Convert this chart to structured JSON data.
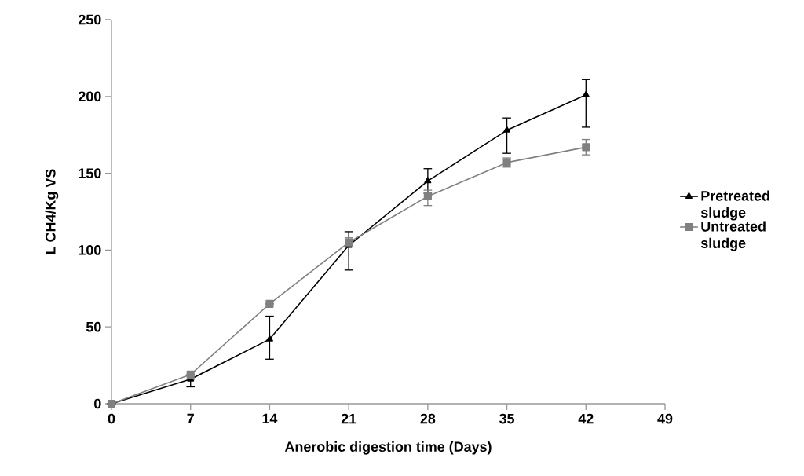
{
  "chart_data": {
    "type": "line",
    "xlabel": "Anerobic digestion time (Days)",
    "ylabel": "L CH4/Kg VS",
    "x": [
      0,
      7,
      14,
      21,
      28,
      35,
      42
    ],
    "series": [
      {
        "name": "Pretreated sludge",
        "color": "#000000",
        "marker": "triangle",
        "values": [
          0,
          16,
          42,
          103,
          145,
          178,
          201
        ],
        "errors": [
          null,
          [
            11,
            16
          ],
          [
            29,
            57
          ],
          [
            87,
            112
          ],
          [
            137,
            153
          ],
          [
            163,
            186
          ],
          [
            180,
            211
          ]
        ]
      },
      {
        "name": "Untreated sludge",
        "color": "#808080",
        "marker": "square",
        "values": [
          0,
          19,
          65,
          105,
          135,
          157,
          167
        ],
        "errors": [
          null,
          null,
          null,
          [
            102,
            108
          ],
          [
            129,
            139
          ],
          [
            154,
            160
          ],
          [
            162,
            172
          ]
        ]
      }
    ],
    "xlim": [
      0,
      49
    ],
    "xticks": [
      0,
      7,
      14,
      21,
      28,
      35,
      42,
      49
    ],
    "ylim": [
      0,
      250
    ],
    "yticks": [
      0,
      50,
      100,
      150,
      200,
      250
    ],
    "grid": false,
    "legend": "right",
    "line_style": "solid"
  }
}
